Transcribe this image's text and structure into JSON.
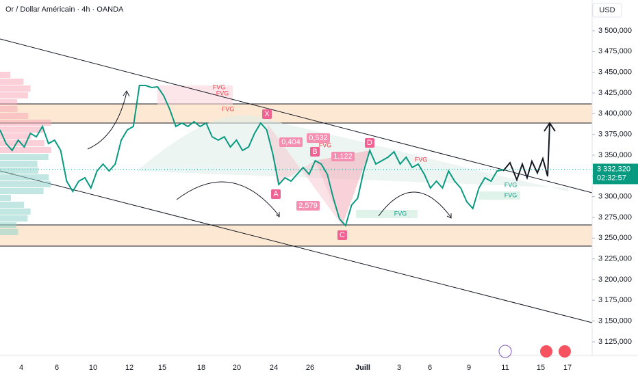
{
  "title": "Or / Dollar Américain · 4h · OANDA",
  "currency": "USD",
  "chart_data": {
    "type": "line",
    "ylim": [
      3108.5,
      3537.1
    ],
    "yticks": [
      {
        "value": 3125,
        "label": "3 125,000"
      },
      {
        "value": 3150,
        "label": "3 150,000"
      },
      {
        "value": 3175,
        "label": "3 175,000"
      },
      {
        "value": 3200,
        "label": "3 200,000"
      },
      {
        "value": 3225,
        "label": "3 225,000"
      },
      {
        "value": 3250,
        "label": "3 250,000"
      },
      {
        "value": 3275,
        "label": "3 275,000"
      },
      {
        "value": 3300,
        "label": "3 300,000"
      },
      {
        "value": 3325,
        "label": "3 325,000"
      },
      {
        "value": 3350,
        "label": "3 350,000"
      },
      {
        "value": 3375,
        "label": "3 375,000"
      },
      {
        "value": 3400,
        "label": "3 400,000"
      },
      {
        "value": 3425,
        "label": "3 425,000"
      },
      {
        "value": 3450,
        "label": "3 450,000"
      },
      {
        "value": 3475,
        "label": "3 475,000"
      },
      {
        "value": 3500,
        "label": "3 500,000"
      }
    ],
    "xtick_labels": [
      "4",
      "6",
      "10",
      "12",
      "15",
      "18",
      "20",
      "24",
      "26",
      "Juill",
      "3",
      "6",
      "9",
      "11",
      "15",
      "17"
    ],
    "series": [
      {
        "name": "XAUUSD",
        "color": "#089981",
        "values": [
          3380.5,
          3364,
          3355.8,
          3368.1,
          3359.9,
          3376.4,
          3372.2,
          3384.6,
          3364,
          3368.1,
          3355.8,
          3318.7,
          3306.3,
          3318.7,
          3322.8,
          3310.4,
          3331,
          3339.3,
          3331,
          3339.3,
          3368.1,
          3380.5,
          3384.6,
          3434.1,
          3434.1,
          3431.6,
          3432.4,
          3421.7,
          3405.2,
          3384.6,
          3388.7,
          3384.6,
          3390.4,
          3384.6,
          3388.7,
          3372.2,
          3368.1,
          3372.2,
          3359.9,
          3368.1,
          3355.8,
          3359.9,
          3376.4,
          3388.7,
          3380.5,
          3351.6,
          3314.6,
          3322.8,
          3318.7,
          3326.9,
          3335.2,
          3326.9,
          3343.4,
          3339.3,
          3326.9,
          3298.1,
          3273.3,
          3265.1,
          3289.8,
          3298.1,
          3331,
          3355.8,
          3339.3,
          3343.4,
          3347.5,
          3354.1,
          3339.3,
          3347.5,
          3335.2,
          3339.3,
          3326.9,
          3310.4,
          3318.7,
          3310.4,
          3331,
          3318.7,
          3310.4,
          3293.9,
          3285.7,
          3310.4,
          3322.8,
          3318.7,
          3331,
          3332.32
        ]
      }
    ],
    "last_price": {
      "value": 3332.32,
      "label": "3 332,320"
    },
    "countdown": "02:32:57",
    "annotations": [
      "FVG",
      "FVG",
      "FVG",
      "X",
      "A",
      "B",
      "C",
      "D",
      "0,404",
      "0,532",
      "1,122",
      "2,579",
      "FVG",
      "FVG",
      "FVG",
      "FVG",
      "FVG"
    ]
  }
}
